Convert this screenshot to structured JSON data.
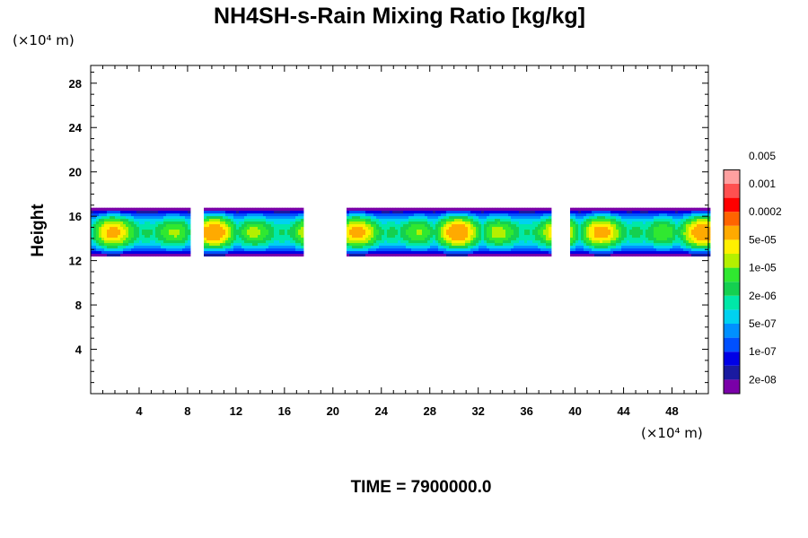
{
  "chart_data": {
    "type": "heatmap",
    "title": "NH4SH-s-Rain Mixing Ratio [kg/kg]",
    "ylabel": "Height",
    "x_unit": "(×10⁴ m)",
    "y_unit": "(×10⁴ m)",
    "xlim": [
      0,
      51
    ],
    "ylim": [
      0,
      29.6
    ],
    "x_ticks": [
      4,
      8,
      12,
      16,
      20,
      24,
      28,
      32,
      36,
      40,
      44,
      48
    ],
    "y_ticks": [
      4,
      8,
      12,
      16,
      20,
      24,
      28
    ],
    "x_tick_labels": [
      "4",
      "8",
      "12",
      "16",
      "20",
      "24",
      "28",
      "32",
      "36",
      "40",
      "44",
      "48"
    ],
    "y_tick_labels": [
      "4",
      "8",
      "12",
      "16",
      "20",
      "24",
      "28"
    ],
    "colorbar": {
      "colors": [
        "#7a00a8",
        "#1a1aa0",
        "#0000e6",
        "#0050ff",
        "#0090ff",
        "#00d2f0",
        "#00e8a8",
        "#14d050",
        "#30e830",
        "#b4f000",
        "#fff000",
        "#ffaa00",
        "#ff6400",
        "#ff0000",
        "#ff5050",
        "#ffa0a0"
      ],
      "labels": [
        "2e-08",
        "1e-07",
        "5e-07",
        "2e-06",
        "1e-05",
        "5e-05",
        "0.0002",
        "0.001",
        "0.005"
      ]
    },
    "cloud_band": {
      "base_height": 13,
      "top_height": 16.5,
      "segments_x": [
        [
          0,
          8.2
        ],
        [
          9.2,
          17.5
        ],
        [
          21,
          38
        ],
        [
          39.5,
          51
        ]
      ],
      "max_level_index": 11
    },
    "time_label": "TIME = 7900000.0"
  }
}
